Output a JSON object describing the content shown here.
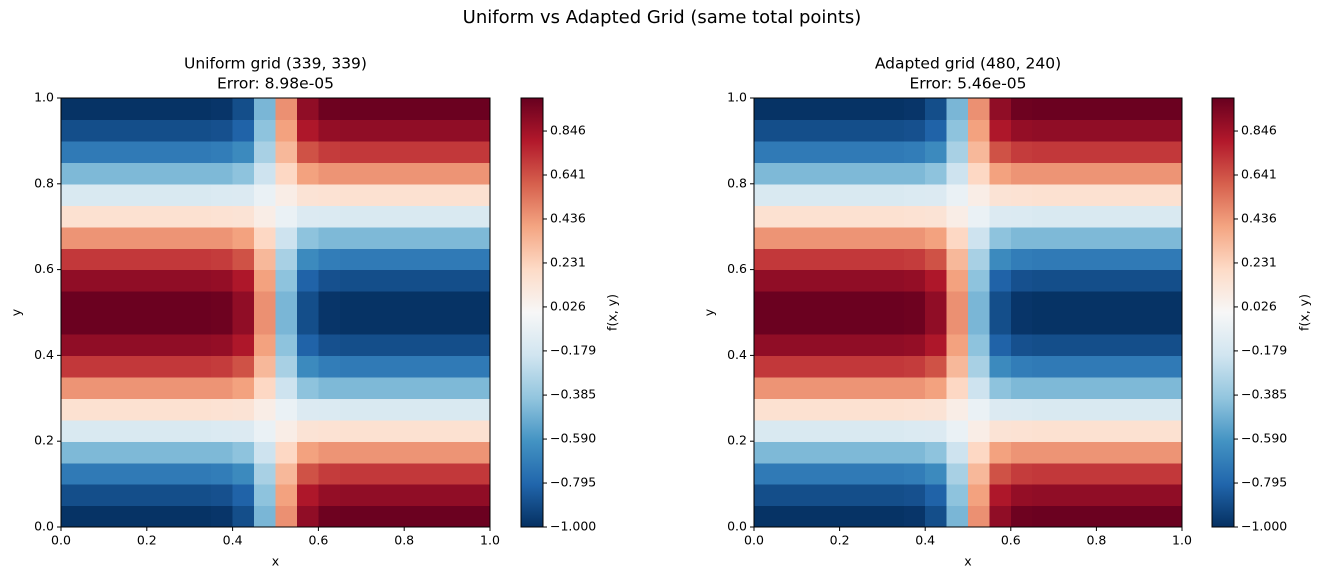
{
  "title": "Uniform vs Adapted Grid (same total points)",
  "chart_data": [
    {
      "type": "contour",
      "title": "Uniform grid (339, 339)",
      "subtitle": "Error: 8.98e-05",
      "x_label": "x",
      "y_label": "y",
      "colorbar_label": "f(x, y)",
      "x": [
        0.025,
        0.075,
        0.125,
        0.175,
        0.225,
        0.275,
        0.325,
        0.375,
        0.425,
        0.475,
        0.525,
        0.575,
        0.625,
        0.675,
        0.725,
        0.775,
        0.825,
        0.875,
        0.925,
        0.975
      ],
      "y": [
        0.025,
        0.075,
        0.125,
        0.175,
        0.225,
        0.275,
        0.325,
        0.375,
        0.425,
        0.475,
        0.525,
        0.575,
        0.625,
        0.675,
        0.725,
        0.775,
        0.825,
        0.875,
        0.925,
        0.975
      ],
      "z": [
        [
          -0.99,
          -0.99,
          -0.99,
          -0.99,
          -0.99,
          -0.99,
          -0.99,
          -0.98,
          -0.89,
          -0.46,
          0.46,
          0.89,
          0.98,
          0.99,
          0.99,
          0.99,
          0.99,
          0.99,
          0.99,
          0.99
        ],
        [
          -0.89,
          -0.89,
          -0.89,
          -0.89,
          -0.89,
          -0.89,
          -0.89,
          -0.88,
          -0.81,
          -0.41,
          0.41,
          0.81,
          0.88,
          0.89,
          0.89,
          0.89,
          0.89,
          0.89,
          0.89,
          0.89
        ],
        [
          -0.71,
          -0.71,
          -0.71,
          -0.71,
          -0.71,
          -0.71,
          -0.71,
          -0.7,
          -0.64,
          -0.33,
          0.33,
          0.64,
          0.7,
          0.71,
          0.71,
          0.71,
          0.71,
          0.71,
          0.71,
          0.71
        ],
        [
          -0.45,
          -0.45,
          -0.45,
          -0.45,
          -0.45,
          -0.45,
          -0.45,
          -0.45,
          -0.41,
          -0.21,
          0.21,
          0.41,
          0.45,
          0.45,
          0.45,
          0.45,
          0.45,
          0.45,
          0.45,
          0.45
        ],
        [
          -0.16,
          -0.16,
          -0.16,
          -0.16,
          -0.16,
          -0.16,
          -0.16,
          -0.15,
          -0.14,
          -0.07,
          0.07,
          0.14,
          0.15,
          0.16,
          0.16,
          0.16,
          0.16,
          0.16,
          0.16,
          0.16
        ],
        [
          0.16,
          0.16,
          0.16,
          0.16,
          0.16,
          0.16,
          0.16,
          0.15,
          0.14,
          0.07,
          -0.07,
          -0.14,
          -0.15,
          -0.16,
          -0.16,
          -0.16,
          -0.16,
          -0.16,
          -0.16,
          -0.16
        ],
        [
          0.45,
          0.45,
          0.45,
          0.45,
          0.45,
          0.45,
          0.45,
          0.45,
          0.41,
          0.21,
          -0.21,
          -0.41,
          -0.45,
          -0.45,
          -0.45,
          -0.45,
          -0.45,
          -0.45,
          -0.45,
          -0.45
        ],
        [
          0.71,
          0.71,
          0.71,
          0.71,
          0.71,
          0.71,
          0.71,
          0.7,
          0.64,
          0.33,
          -0.33,
          -0.64,
          -0.7,
          -0.71,
          -0.71,
          -0.71,
          -0.71,
          -0.71,
          -0.71,
          -0.71
        ],
        [
          0.89,
          0.89,
          0.89,
          0.89,
          0.89,
          0.89,
          0.89,
          0.88,
          0.81,
          0.41,
          -0.41,
          -0.81,
          -0.88,
          -0.89,
          -0.89,
          -0.89,
          -0.89,
          -0.89,
          -0.89,
          -0.89
        ],
        [
          0.99,
          0.99,
          0.99,
          0.99,
          0.99,
          0.99,
          0.99,
          0.98,
          0.89,
          0.46,
          -0.46,
          -0.89,
          -0.98,
          -0.99,
          -0.99,
          -0.99,
          -0.99,
          -0.99,
          -0.99,
          -0.99
        ],
        [
          0.99,
          0.99,
          0.99,
          0.99,
          0.99,
          0.99,
          0.99,
          0.98,
          0.89,
          0.46,
          -0.46,
          -0.89,
          -0.98,
          -0.99,
          -0.99,
          -0.99,
          -0.99,
          -0.99,
          -0.99,
          -0.99
        ],
        [
          0.89,
          0.89,
          0.89,
          0.89,
          0.89,
          0.89,
          0.89,
          0.88,
          0.81,
          0.41,
          -0.41,
          -0.81,
          -0.88,
          -0.89,
          -0.89,
          -0.89,
          -0.89,
          -0.89,
          -0.89,
          -0.89
        ],
        [
          0.71,
          0.71,
          0.71,
          0.71,
          0.71,
          0.71,
          0.71,
          0.7,
          0.64,
          0.33,
          -0.33,
          -0.64,
          -0.7,
          -0.71,
          -0.71,
          -0.71,
          -0.71,
          -0.71,
          -0.71,
          -0.71
        ],
        [
          0.45,
          0.45,
          0.45,
          0.45,
          0.45,
          0.45,
          0.45,
          0.45,
          0.41,
          0.21,
          -0.21,
          -0.41,
          -0.45,
          -0.45,
          -0.45,
          -0.45,
          -0.45,
          -0.45,
          -0.45,
          -0.45
        ],
        [
          0.16,
          0.16,
          0.16,
          0.16,
          0.16,
          0.16,
          0.16,
          0.15,
          0.14,
          0.07,
          -0.07,
          -0.14,
          -0.15,
          -0.16,
          -0.16,
          -0.16,
          -0.16,
          -0.16,
          -0.16,
          -0.16
        ],
        [
          -0.16,
          -0.16,
          -0.16,
          -0.16,
          -0.16,
          -0.16,
          -0.16,
          -0.15,
          -0.14,
          -0.07,
          0.07,
          0.14,
          0.15,
          0.16,
          0.16,
          0.16,
          0.16,
          0.16,
          0.16,
          0.16
        ],
        [
          -0.45,
          -0.45,
          -0.45,
          -0.45,
          -0.45,
          -0.45,
          -0.45,
          -0.45,
          -0.41,
          -0.21,
          0.21,
          0.41,
          0.45,
          0.45,
          0.45,
          0.45,
          0.45,
          0.45,
          0.45,
          0.45
        ],
        [
          -0.71,
          -0.71,
          -0.71,
          -0.71,
          -0.71,
          -0.71,
          -0.71,
          -0.7,
          -0.64,
          -0.33,
          0.33,
          0.64,
          0.7,
          0.71,
          0.71,
          0.71,
          0.71,
          0.71,
          0.71,
          0.71
        ],
        [
          -0.89,
          -0.89,
          -0.89,
          -0.89,
          -0.89,
          -0.89,
          -0.89,
          -0.88,
          -0.81,
          -0.41,
          0.41,
          0.81,
          0.88,
          0.89,
          0.89,
          0.89,
          0.89,
          0.89,
          0.89,
          0.89
        ],
        [
          -0.99,
          -0.99,
          -0.99,
          -0.99,
          -0.99,
          -0.99,
          -0.99,
          -0.98,
          -0.89,
          -0.46,
          0.46,
          0.89,
          0.98,
          0.99,
          0.99,
          0.99,
          0.99,
          0.99,
          0.99,
          0.99
        ]
      ],
      "xlim": [
        0,
        1
      ],
      "ylim": [
        0,
        1
      ],
      "xticks": [
        {
          "value": 0,
          "label": "0.0"
        },
        0.2,
        0.4,
        0.6,
        0.8,
        {
          "value": 1,
          "label": "1.0"
        }
      ],
      "yticks": [
        {
          "value": 0,
          "label": "0.0"
        },
        0.2,
        0.4,
        0.6,
        0.8,
        {
          "value": 1,
          "label": "1.0"
        }
      ],
      "clim": [
        -1,
        1
      ],
      "cticks": [
        {
          "value": -1,
          "label": "−1.000"
        },
        {
          "value": -0.795,
          "label": "−0.795"
        },
        {
          "value": -0.59,
          "label": "−0.590"
        },
        {
          "value": -0.385,
          "label": "−0.385"
        },
        {
          "value": -0.179,
          "label": "−0.179"
        },
        0.026,
        0.231,
        0.436,
        0.641,
        0.846
      ],
      "colormap": [
        "#053061",
        "#2166ac",
        "#4393c3",
        "#92c5de",
        "#d1e5f0",
        "#f7f7f7",
        "#fddbc7",
        "#f4a582",
        "#d6604d",
        "#b2182b",
        "#67001f"
      ]
    },
    {
      "type": "contour",
      "title": "Adapted grid (480, 240)",
      "subtitle": "Error: 5.46e-05",
      "x_label": "x",
      "y_label": "y",
      "colorbar_label": "f(x, y)",
      "x": [
        0.025,
        0.075,
        0.125,
        0.175,
        0.225,
        0.275,
        0.325,
        0.375,
        0.425,
        0.475,
        0.525,
        0.575,
        0.625,
        0.675,
        0.725,
        0.775,
        0.825,
        0.875,
        0.925,
        0.975
      ],
      "y": [
        0.025,
        0.075,
        0.125,
        0.175,
        0.225,
        0.275,
        0.325,
        0.375,
        0.425,
        0.475,
        0.525,
        0.575,
        0.625,
        0.675,
        0.725,
        0.775,
        0.825,
        0.875,
        0.925,
        0.975
      ],
      "z": [
        [
          -0.99,
          -0.99,
          -0.99,
          -0.99,
          -0.99,
          -0.99,
          -0.99,
          -0.98,
          -0.89,
          -0.46,
          0.46,
          0.89,
          0.98,
          0.99,
          0.99,
          0.99,
          0.99,
          0.99,
          0.99,
          0.99
        ],
        [
          -0.89,
          -0.89,
          -0.89,
          -0.89,
          -0.89,
          -0.89,
          -0.89,
          -0.88,
          -0.81,
          -0.41,
          0.41,
          0.81,
          0.88,
          0.89,
          0.89,
          0.89,
          0.89,
          0.89,
          0.89,
          0.89
        ],
        [
          -0.71,
          -0.71,
          -0.71,
          -0.71,
          -0.71,
          -0.71,
          -0.71,
          -0.7,
          -0.64,
          -0.33,
          0.33,
          0.64,
          0.7,
          0.71,
          0.71,
          0.71,
          0.71,
          0.71,
          0.71,
          0.71
        ],
        [
          -0.45,
          -0.45,
          -0.45,
          -0.45,
          -0.45,
          -0.45,
          -0.45,
          -0.45,
          -0.41,
          -0.21,
          0.21,
          0.41,
          0.45,
          0.45,
          0.45,
          0.45,
          0.45,
          0.45,
          0.45,
          0.45
        ],
        [
          -0.16,
          -0.16,
          -0.16,
          -0.16,
          -0.16,
          -0.16,
          -0.16,
          -0.15,
          -0.14,
          -0.07,
          0.07,
          0.14,
          0.15,
          0.16,
          0.16,
          0.16,
          0.16,
          0.16,
          0.16,
          0.16
        ],
        [
          0.16,
          0.16,
          0.16,
          0.16,
          0.16,
          0.16,
          0.16,
          0.15,
          0.14,
          0.07,
          -0.07,
          -0.14,
          -0.15,
          -0.16,
          -0.16,
          -0.16,
          -0.16,
          -0.16,
          -0.16,
          -0.16
        ],
        [
          0.45,
          0.45,
          0.45,
          0.45,
          0.45,
          0.45,
          0.45,
          0.45,
          0.41,
          0.21,
          -0.21,
          -0.41,
          -0.45,
          -0.45,
          -0.45,
          -0.45,
          -0.45,
          -0.45,
          -0.45,
          -0.45
        ],
        [
          0.71,
          0.71,
          0.71,
          0.71,
          0.71,
          0.71,
          0.71,
          0.7,
          0.64,
          0.33,
          -0.33,
          -0.64,
          -0.7,
          -0.71,
          -0.71,
          -0.71,
          -0.71,
          -0.71,
          -0.71,
          -0.71
        ],
        [
          0.89,
          0.89,
          0.89,
          0.89,
          0.89,
          0.89,
          0.89,
          0.88,
          0.81,
          0.41,
          -0.41,
          -0.81,
          -0.88,
          -0.89,
          -0.89,
          -0.89,
          -0.89,
          -0.89,
          -0.89,
          -0.89
        ],
        [
          0.99,
          0.99,
          0.99,
          0.99,
          0.99,
          0.99,
          0.99,
          0.98,
          0.89,
          0.46,
          -0.46,
          -0.89,
          -0.98,
          -0.99,
          -0.99,
          -0.99,
          -0.99,
          -0.99,
          -0.99,
          -0.99
        ],
        [
          0.99,
          0.99,
          0.99,
          0.99,
          0.99,
          0.99,
          0.99,
          0.98,
          0.89,
          0.46,
          -0.46,
          -0.89,
          -0.98,
          -0.99,
          -0.99,
          -0.99,
          -0.99,
          -0.99,
          -0.99,
          -0.99
        ],
        [
          0.89,
          0.89,
          0.89,
          0.89,
          0.89,
          0.89,
          0.89,
          0.88,
          0.81,
          0.41,
          -0.41,
          -0.81,
          -0.88,
          -0.89,
          -0.89,
          -0.89,
          -0.89,
          -0.89,
          -0.89,
          -0.89
        ],
        [
          0.71,
          0.71,
          0.71,
          0.71,
          0.71,
          0.71,
          0.71,
          0.7,
          0.64,
          0.33,
          -0.33,
          -0.64,
          -0.7,
          -0.71,
          -0.71,
          -0.71,
          -0.71,
          -0.71,
          -0.71,
          -0.71
        ],
        [
          0.45,
          0.45,
          0.45,
          0.45,
          0.45,
          0.45,
          0.45,
          0.45,
          0.41,
          0.21,
          -0.21,
          -0.41,
          -0.45,
          -0.45,
          -0.45,
          -0.45,
          -0.45,
          -0.45,
          -0.45,
          -0.45
        ],
        [
          0.16,
          0.16,
          0.16,
          0.16,
          0.16,
          0.16,
          0.16,
          0.15,
          0.14,
          0.07,
          -0.07,
          -0.14,
          -0.15,
          -0.16,
          -0.16,
          -0.16,
          -0.16,
          -0.16,
          -0.16,
          -0.16
        ],
        [
          -0.16,
          -0.16,
          -0.16,
          -0.16,
          -0.16,
          -0.16,
          -0.16,
          -0.15,
          -0.14,
          -0.07,
          0.07,
          0.14,
          0.15,
          0.16,
          0.16,
          0.16,
          0.16,
          0.16,
          0.16,
          0.16
        ],
        [
          -0.45,
          -0.45,
          -0.45,
          -0.45,
          -0.45,
          -0.45,
          -0.45,
          -0.45,
          -0.41,
          -0.21,
          0.21,
          0.41,
          0.45,
          0.45,
          0.45,
          0.45,
          0.45,
          0.45,
          0.45,
          0.45
        ],
        [
          -0.71,
          -0.71,
          -0.71,
          -0.71,
          -0.71,
          -0.71,
          -0.71,
          -0.7,
          -0.64,
          -0.33,
          0.33,
          0.64,
          0.7,
          0.71,
          0.71,
          0.71,
          0.71,
          0.71,
          0.71,
          0.71
        ],
        [
          -0.89,
          -0.89,
          -0.89,
          -0.89,
          -0.89,
          -0.89,
          -0.89,
          -0.88,
          -0.81,
          -0.41,
          0.41,
          0.81,
          0.88,
          0.89,
          0.89,
          0.89,
          0.89,
          0.89,
          0.89,
          0.89
        ],
        [
          -0.99,
          -0.99,
          -0.99,
          -0.99,
          -0.99,
          -0.99,
          -0.99,
          -0.98,
          -0.89,
          -0.46,
          0.46,
          0.89,
          0.98,
          0.99,
          0.99,
          0.99,
          0.99,
          0.99,
          0.99,
          0.99
        ]
      ],
      "xlim": [
        0,
        1
      ],
      "ylim": [
        0,
        1
      ],
      "xticks": [
        {
          "value": 0,
          "label": "0.0"
        },
        0.2,
        0.4,
        0.6,
        0.8,
        {
          "value": 1,
          "label": "1.0"
        }
      ],
      "yticks": [
        {
          "value": 0,
          "label": "0.0"
        },
        0.2,
        0.4,
        0.6,
        0.8,
        {
          "value": 1,
          "label": "1.0"
        }
      ],
      "clim": [
        -1,
        1
      ],
      "cticks": [
        {
          "value": -1,
          "label": "−1.000"
        },
        {
          "value": -0.795,
          "label": "−0.795"
        },
        {
          "value": -0.59,
          "label": "−0.590"
        },
        {
          "value": -0.385,
          "label": "−0.385"
        },
        {
          "value": -0.179,
          "label": "−0.179"
        },
        0.026,
        0.231,
        0.436,
        0.641,
        0.846
      ],
      "colormap": [
        "#053061",
        "#2166ac",
        "#4393c3",
        "#92c5de",
        "#d1e5f0",
        "#f7f7f7",
        "#fddbc7",
        "#f4a582",
        "#d6604d",
        "#b2182b",
        "#67001f"
      ]
    }
  ]
}
